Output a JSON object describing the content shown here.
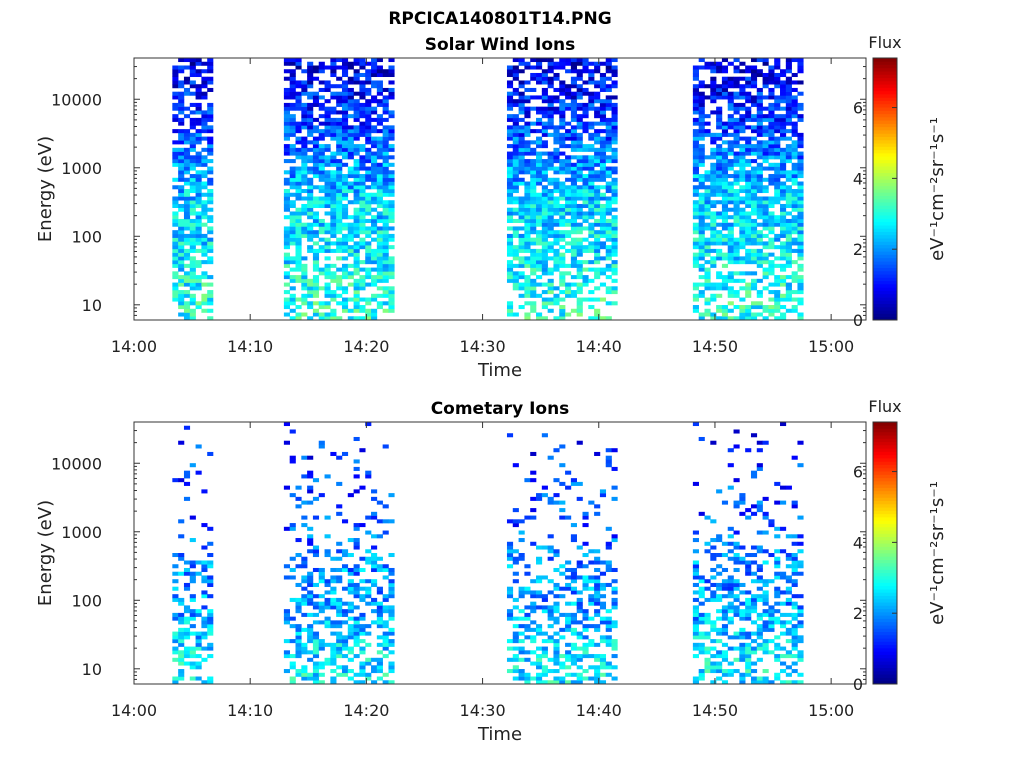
{
  "figure_title": "RPCICA140801T14.PNG",
  "chart_data": [
    {
      "type": "heatmap",
      "title": "Solar Wind Ions",
      "xlabel": "Time",
      "ylabel": "Energy (eV)",
      "xticks": [
        "14:00",
        "14:10",
        "14:20",
        "14:30",
        "14:40",
        "14:50",
        "15:00"
      ],
      "xlim": [
        "14:00",
        "15:03"
      ],
      "yscale": "log",
      "yticks": [
        "10",
        "100",
        "1000",
        "10000"
      ],
      "ylim": [
        6,
        40000
      ],
      "colorbar": {
        "label": "Flux",
        "unit": "eV⁻¹cm⁻²sr⁻¹s⁻¹",
        "ticks": [
          "0",
          "2",
          "4",
          "6"
        ],
        "range": [
          0,
          7.4
        ],
        "colormap": "jet"
      },
      "active_intervals": [
        [
          "14:03.3",
          "14:06.4"
        ],
        [
          "14:12.9",
          "14:22.4"
        ],
        [
          "14:32.1",
          "14:41.6"
        ],
        [
          "14:48.1",
          "14:57.6"
        ]
      ],
      "flux_profile_by_energy": [
        {
          "energy_eV": 10,
          "flux": 3.0
        },
        {
          "energy_eV": 40,
          "flux": 2.7
        },
        {
          "energy_eV": 100,
          "flux": 2.6
        },
        {
          "energy_eV": 300,
          "flux": 2.5
        },
        {
          "energy_eV": 1000,
          "flux": 2.0
        },
        {
          "energy_eV": 3000,
          "flux": 1.5
        },
        {
          "energy_eV": 10000,
          "flux": 1.1
        },
        {
          "energy_eV": 30000,
          "flux": 0.8
        }
      ],
      "fill_density_by_energy": [
        {
          "energy_eV": 10,
          "fill": 0.55
        },
        {
          "energy_eV": 100,
          "fill": 0.8
        },
        {
          "energy_eV": 1000,
          "fill": 0.8
        },
        {
          "energy_eV": 10000,
          "fill": 0.7
        },
        {
          "energy_eV": 40000,
          "fill": 0.6
        }
      ]
    },
    {
      "type": "heatmap",
      "title": "Cometary Ions",
      "xlabel": "Time",
      "ylabel": "Energy (eV)",
      "xticks": [
        "14:00",
        "14:10",
        "14:20",
        "14:30",
        "14:40",
        "14:50",
        "15:00"
      ],
      "xlim": [
        "14:00",
        "15:03"
      ],
      "yscale": "log",
      "yticks": [
        "10",
        "100",
        "1000",
        "10000"
      ],
      "ylim": [
        6,
        40000
      ],
      "colorbar": {
        "label": "Flux",
        "unit": "eV⁻¹cm⁻²sr⁻¹s⁻¹",
        "ticks": [
          "0",
          "2",
          "4",
          "6"
        ],
        "range": [
          0,
          7.4
        ],
        "colormap": "jet"
      },
      "active_intervals": [
        [
          "14:03.3",
          "14:06.4"
        ],
        [
          "14:12.9",
          "14:22.4"
        ],
        [
          "14:32.1",
          "14:41.6"
        ],
        [
          "14:48.1",
          "14:57.6"
        ]
      ],
      "flux_profile_by_energy": [
        {
          "energy_eV": 10,
          "flux": 2.7
        },
        {
          "energy_eV": 40,
          "flux": 2.3
        },
        {
          "energy_eV": 100,
          "flux": 2.0
        },
        {
          "energy_eV": 300,
          "flux": 2.0
        },
        {
          "energy_eV": 1000,
          "flux": 1.6
        },
        {
          "energy_eV": 10000,
          "flux": 1.3
        },
        {
          "energy_eV": 30000,
          "flux": 1.1
        }
      ],
      "fill_density_by_energy": [
        {
          "energy_eV": 10,
          "fill": 0.55
        },
        {
          "energy_eV": 100,
          "fill": 0.55
        },
        {
          "energy_eV": 300,
          "fill": 0.35
        },
        {
          "energy_eV": 1000,
          "fill": 0.18
        },
        {
          "energy_eV": 5000,
          "fill": 0.12
        },
        {
          "energy_eV": 40000,
          "fill": 0.05
        }
      ]
    }
  ]
}
